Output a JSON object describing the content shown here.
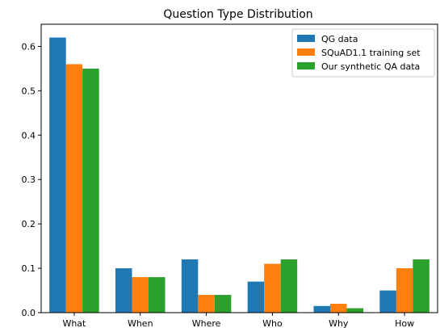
{
  "chart_data": {
    "type": "bar",
    "title": "Question Type Distribution",
    "xlabel": "",
    "ylabel": "",
    "categories": [
      "What",
      "When",
      "Where",
      "Who",
      "Why",
      "How"
    ],
    "series": [
      {
        "name": "QG data",
        "color": "#1f77b4",
        "values": [
          0.62,
          0.1,
          0.12,
          0.07,
          0.015,
          0.05
        ]
      },
      {
        "name": "SQuAD1.1 training set",
        "color": "#ff7f0e",
        "values": [
          0.56,
          0.08,
          0.04,
          0.11,
          0.02,
          0.1
        ]
      },
      {
        "name": "Our synthetic QA data",
        "color": "#2ca02c",
        "values": [
          0.55,
          0.08,
          0.04,
          0.12,
          0.01,
          0.12
        ]
      }
    ],
    "ylim": [
      0,
      0.65
    ],
    "yticks": [
      0.0,
      0.1,
      0.2,
      0.3,
      0.4,
      0.5,
      0.6
    ],
    "ytick_labels": [
      "0.0",
      "0.1",
      "0.2",
      "0.3",
      "0.4",
      "0.5",
      "0.6"
    ],
    "grid": false,
    "legend_position": "top-right"
  }
}
